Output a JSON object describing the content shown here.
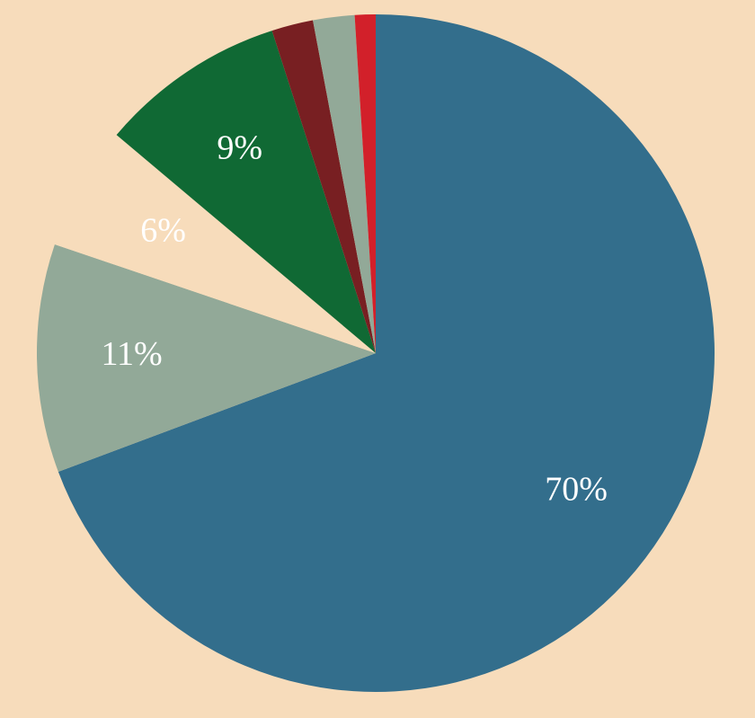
{
  "chart_data": {
    "type": "pie",
    "values": [
      70,
      11,
      6,
      9,
      2,
      2,
      1
    ],
    "value_labels": [
      "70%",
      "11%",
      "6%",
      "9%",
      null,
      null,
      null
    ],
    "colors": [
      "#336e8c",
      "#92a998",
      "#f7dcbb",
      "#106934",
      "#781f22",
      "#92a998",
      "#d2202a"
    ]
  }
}
